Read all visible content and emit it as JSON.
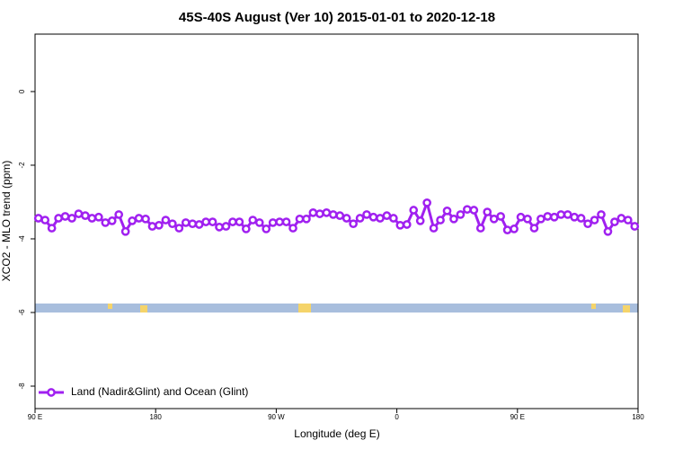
{
  "chart_data": {
    "type": "line",
    "title": "45S-40S August (Ver 10)   2015-01-01 to 2020-12-18",
    "x_label": "Longitude (deg E)",
    "y_label": "XCO2 - MLO trend (ppm)",
    "x": [
      92.5,
      97.5,
      102.5,
      107.5,
      112.5,
      117.5,
      122.5,
      127.5,
      132.5,
      137.5,
      142.5,
      147.5,
      152.5,
      157.5,
      162.5,
      167.5,
      172.5,
      177.5,
      182.5,
      187.5,
      192.5,
      197.5,
      202.5,
      207.5,
      212.5,
      217.5,
      222.5,
      227.5,
      232.5,
      237.5,
      242.5,
      247.5,
      252.5,
      257.5,
      262.5,
      267.5,
      272.5,
      277.5,
      282.5,
      287.5,
      292.5,
      297.5,
      302.5,
      307.5,
      312.5,
      317.5,
      322.5,
      327.5,
      332.5,
      337.5,
      342.5,
      347.5,
      352.5,
      357.5,
      362.5,
      367.5,
      372.5,
      377.5,
      382.5,
      387.5,
      392.5,
      397.5,
      402.5,
      407.5,
      412.5,
      417.5,
      422.5,
      427.5,
      432.5,
      437.5,
      442.5,
      447.5,
      452.5,
      457.5,
      462.5,
      467.5,
      472.5,
      477.5,
      482.5,
      487.5,
      492.5,
      497.5,
      502.5,
      507.5,
      512.5,
      517.5,
      522.5,
      527.5,
      532.5,
      537.5
    ],
    "series": [
      {
        "name": "Land (Nadir&Glint) and Ocean (Glint)",
        "color": "#a020f0",
        "values": [
          -3.44,
          -3.49,
          -3.71,
          -3.44,
          -3.39,
          -3.44,
          -3.32,
          -3.37,
          -3.44,
          -3.41,
          -3.56,
          -3.51,
          -3.34,
          -3.8,
          -3.51,
          -3.44,
          -3.46,
          -3.66,
          -3.63,
          -3.49,
          -3.59,
          -3.71,
          -3.56,
          -3.59,
          -3.61,
          -3.54,
          -3.54,
          -3.68,
          -3.66,
          -3.54,
          -3.54,
          -3.73,
          -3.49,
          -3.56,
          -3.73,
          -3.56,
          -3.54,
          -3.54,
          -3.71,
          -3.46,
          -3.46,
          -3.29,
          -3.32,
          -3.29,
          -3.34,
          -3.37,
          -3.44,
          -3.59,
          -3.44,
          -3.34,
          -3.41,
          -3.44,
          -3.37,
          -3.44,
          -3.63,
          -3.61,
          -3.22,
          -3.51,
          -3.02,
          -3.71,
          -3.49,
          -3.24,
          -3.46,
          -3.34,
          -3.2,
          -3.22,
          -3.71,
          -3.27,
          -3.46,
          -3.39,
          -3.76,
          -3.73,
          -3.41,
          -3.46,
          -3.71,
          -3.46,
          -3.39,
          -3.41,
          -3.34,
          -3.34,
          -3.41,
          -3.44,
          -3.59,
          -3.49,
          -3.34,
          -3.8,
          -3.54,
          -3.44,
          -3.49,
          -3.66
        ]
      }
    ],
    "xlim": [
      90,
      540
    ],
    "xticks": [
      {
        "value": 90,
        "label": "90 E"
      },
      180,
      {
        "value": 270,
        "label": "90 W"
      },
      {
        "value": 360,
        "label": "0"
      },
      {
        "value": 450,
        "label": "90 E"
      },
      {
        "value": 540,
        "label": "180"
      }
    ],
    "ylim": [
      -8.61,
      1.56
    ],
    "yticks": [
      0,
      -2,
      -4,
      -6,
      -8
    ],
    "legend": "bottom-left"
  }
}
